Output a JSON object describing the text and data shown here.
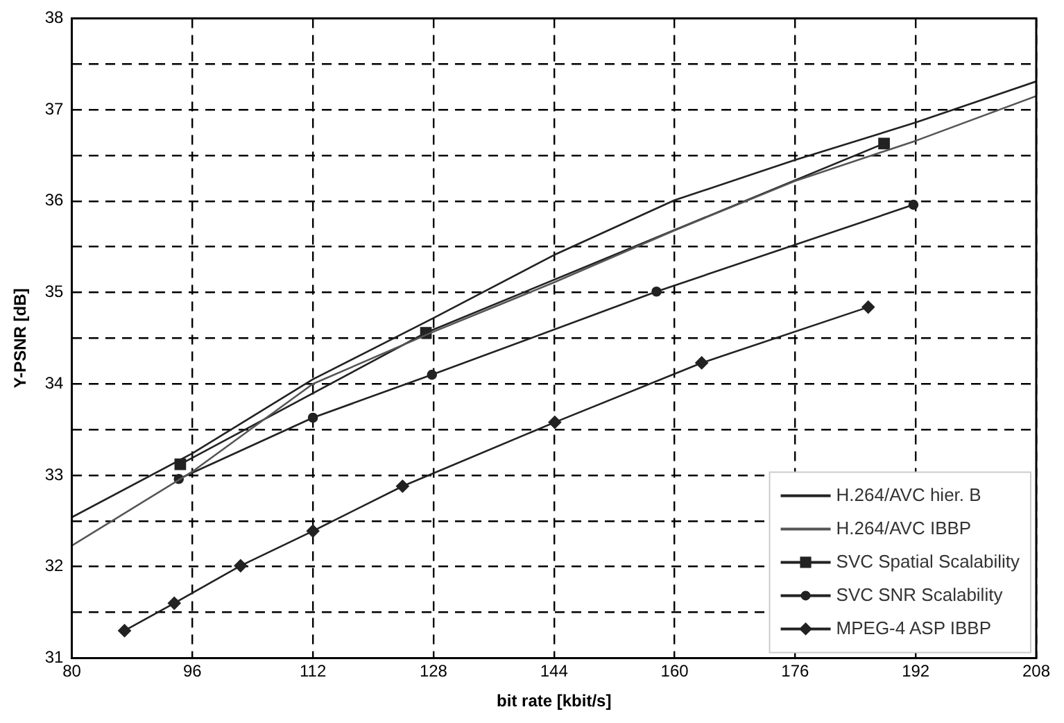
{
  "chart_data": {
    "type": "line",
    "xlabel": "bit rate [kbit/s]",
    "ylabel": "Y-PSNR [dB]",
    "xlim": [
      80,
      208
    ],
    "xticks": [
      80,
      96,
      112,
      128,
      144,
      160,
      176,
      192,
      208
    ],
    "ylim": [
      31,
      38
    ],
    "yticks": [
      31,
      {
        "value": 31.5,
        "label": null
      },
      32,
      {
        "value": 32.5,
        "label": null
      },
      33,
      {
        "value": 33.5,
        "label": null
      },
      34,
      {
        "value": 34.5,
        "label": null
      },
      35,
      {
        "value": 35.5,
        "label": null
      },
      36,
      {
        "value": 36.5,
        "label": null
      },
      37,
      {
        "value": 37.5,
        "label": null
      },
      38
    ],
    "grid": true,
    "legend": "bottom right",
    "marker": "none",
    "line_style": "solid",
    "series": [
      {
        "name": "H.264/AVC hier. B",
        "color": "#222222",
        "x": [
          80,
          96,
          112,
          128,
          144,
          160,
          176,
          192,
          208
        ],
        "values": [
          32.54,
          33.24,
          34.05,
          34.72,
          35.41,
          36.01,
          36.45,
          36.86,
          37.31
        ]
      },
      {
        "name": "H.264/AVC IBBP",
        "color": "#555555",
        "x": [
          80,
          96,
          112,
          128,
          144,
          160,
          176,
          192,
          208
        ],
        "values": [
          32.23,
          33.04,
          34.0,
          34.57,
          35.11,
          35.68,
          36.22,
          36.66,
          37.15
        ]
      },
      {
        "name": "SVC Spatial Scalability",
        "color": "#222222",
        "marker": "square",
        "x": [
          94.4,
          127,
          187.8
        ],
        "values": [
          33.12,
          34.56,
          36.63
        ]
      },
      {
        "name": "SVC SNR Scalability",
        "color": "#222222",
        "marker": "circle",
        "x": [
          94.2,
          112,
          127.8,
          157.6,
          191.7
        ],
        "values": [
          32.96,
          33.63,
          34.1,
          35.01,
          35.96
        ]
      },
      {
        "name": "MPEG-4 ASP IBBP",
        "color": "#222222",
        "marker": "diamond",
        "x": [
          87,
          93.6,
          102.4,
          112,
          123.9,
          144.1,
          163.6,
          185.7
        ],
        "values": [
          31.3,
          31.6,
          32.01,
          32.39,
          32.88,
          33.58,
          34.23,
          34.84
        ]
      }
    ]
  }
}
